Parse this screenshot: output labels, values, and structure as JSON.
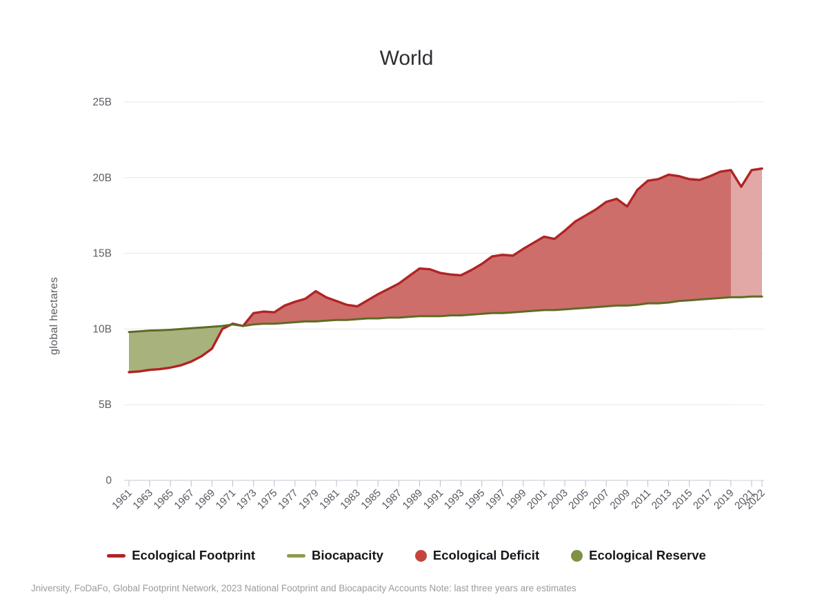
{
  "chart_data": {
    "type": "area",
    "title": "World",
    "xlabel": "",
    "ylabel": "global hectares",
    "unit": "billion global hectares",
    "ylim": [
      0,
      25
    ],
    "grid": "horizontal",
    "legend_position": "bottom",
    "yticks": [
      {
        "value": 0,
        "label": "0"
      },
      {
        "value": 5,
        "label": "5B"
      },
      {
        "value": 10,
        "label": "10B"
      },
      {
        "value": 15,
        "label": "15B"
      },
      {
        "value": 20,
        "label": "20B"
      },
      {
        "value": 25,
        "label": "25B"
      }
    ],
    "xticks": [
      1961,
      1963,
      1965,
      1967,
      1969,
      1971,
      1973,
      1975,
      1977,
      1979,
      1981,
      1983,
      1985,
      1987,
      1989,
      1991,
      1993,
      1995,
      1997,
      1999,
      2001,
      2003,
      2005,
      2007,
      2009,
      2011,
      2013,
      2015,
      2017,
      2019,
      2021,
      2022
    ],
    "x": [
      1961,
      1962,
      1963,
      1964,
      1965,
      1966,
      1967,
      1968,
      1969,
      1970,
      1971,
      1972,
      1973,
      1974,
      1975,
      1976,
      1977,
      1978,
      1979,
      1980,
      1981,
      1982,
      1983,
      1984,
      1985,
      1986,
      1987,
      1988,
      1989,
      1990,
      1991,
      1992,
      1993,
      1994,
      1995,
      1996,
      1997,
      1998,
      1999,
      2000,
      2001,
      2002,
      2003,
      2004,
      2005,
      2006,
      2007,
      2008,
      2009,
      2010,
      2011,
      2012,
      2013,
      2014,
      2015,
      2016,
      2017,
      2018,
      2019,
      2020,
      2021,
      2022
    ],
    "series": [
      {
        "name": "Ecological Footprint",
        "color": "#b02423",
        "values": [
          7.15,
          7.2,
          7.3,
          7.35,
          7.45,
          7.6,
          7.85,
          8.2,
          8.7,
          10.0,
          10.35,
          10.2,
          11.05,
          11.15,
          11.1,
          11.55,
          11.8,
          12.0,
          12.5,
          12.1,
          11.85,
          11.6,
          11.5,
          11.9,
          12.3,
          12.65,
          13.0,
          13.5,
          14.0,
          13.95,
          13.7,
          13.6,
          13.55,
          13.9,
          14.3,
          14.8,
          14.9,
          14.85,
          15.3,
          15.7,
          16.1,
          15.95,
          16.5,
          17.1,
          17.5,
          17.9,
          18.4,
          18.6,
          18.1,
          19.2,
          19.8,
          19.9,
          20.2,
          20.1,
          19.9,
          19.85,
          20.1,
          20.4,
          20.5,
          19.4,
          20.5,
          20.6
        ]
      },
      {
        "name": "Biocapacity",
        "color": "#5c6c25",
        "values": [
          9.8,
          9.85,
          9.9,
          9.92,
          9.95,
          10.0,
          10.05,
          10.1,
          10.15,
          10.2,
          10.3,
          10.2,
          10.3,
          10.35,
          10.35,
          10.4,
          10.45,
          10.5,
          10.5,
          10.55,
          10.6,
          10.6,
          10.65,
          10.7,
          10.7,
          10.75,
          10.75,
          10.8,
          10.85,
          10.85,
          10.85,
          10.9,
          10.9,
          10.95,
          11.0,
          11.05,
          11.05,
          11.1,
          11.15,
          11.2,
          11.25,
          11.25,
          11.3,
          11.35,
          11.4,
          11.45,
          11.5,
          11.55,
          11.55,
          11.6,
          11.7,
          11.7,
          11.75,
          11.85,
          11.9,
          11.95,
          12.0,
          12.05,
          12.1,
          12.1,
          12.15,
          12.15
        ]
      }
    ],
    "areas": [
      {
        "name": "Ecological Deficit",
        "color": "#cd6e6b"
      },
      {
        "name": "Ecological Reserve",
        "color": "#a8b27d"
      }
    ],
    "estimate_band": {
      "start_year": 2019,
      "end_year": 2022,
      "overlay_opacity": 0.4
    }
  },
  "legend": {
    "items": [
      {
        "label": "Ecological Footprint",
        "marker": "dash",
        "color": "#b02423"
      },
      {
        "label": "Biocapacity",
        "marker": "dash",
        "color": "#8e9c4a"
      },
      {
        "label": "Ecological Deficit",
        "marker": "circle",
        "color": "#c5453e"
      },
      {
        "label": "Ecological Reserve",
        "marker": "circle",
        "color": "#7f9144"
      }
    ]
  },
  "footer": {
    "note": "Jniversity, FoDaFo, Global Footprint Network, 2023 National Footprint and Biocapacity Accounts Note: last three years are estimates"
  }
}
